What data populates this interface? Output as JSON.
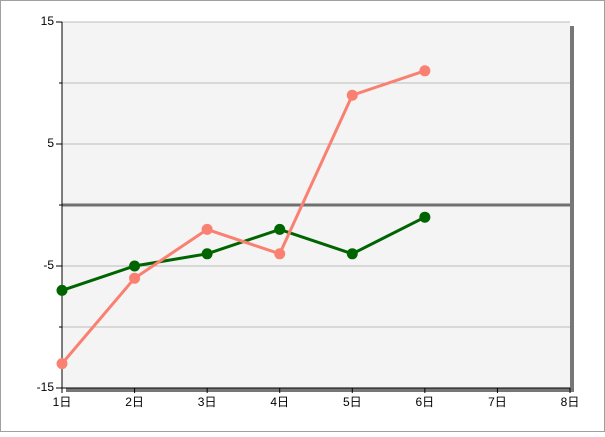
{
  "chart_data": {
    "type": "line",
    "x": [
      1,
      2,
      3,
      4,
      5,
      6
    ],
    "series": [
      {
        "color": "#006400",
        "values": [
          -7,
          -5,
          -4,
          -2,
          -4,
          -1
        ]
      },
      {
        "color": "#fa8072",
        "values": [
          -13,
          -6,
          -2,
          -4,
          9,
          11
        ]
      }
    ],
    "xlim": [
      1,
      8
    ],
    "xticks": [
      {
        "value": 1,
        "label": "1日"
      },
      {
        "value": 2,
        "label": "2日"
      },
      {
        "value": 3,
        "label": "3日"
      },
      {
        "value": 4,
        "label": "4日"
      },
      {
        "value": 5,
        "label": "5日"
      },
      {
        "value": 6,
        "label": "6日"
      },
      {
        "value": 7,
        "label": "7日"
      },
      {
        "value": 8,
        "label": "8日"
      }
    ],
    "ylim": [
      -15,
      15
    ],
    "yticks": [
      -15,
      -5,
      5,
      15
    ],
    "y_minor_ticks": [
      -10,
      0,
      10
    ],
    "grid": true,
    "zero_line": true
  }
}
